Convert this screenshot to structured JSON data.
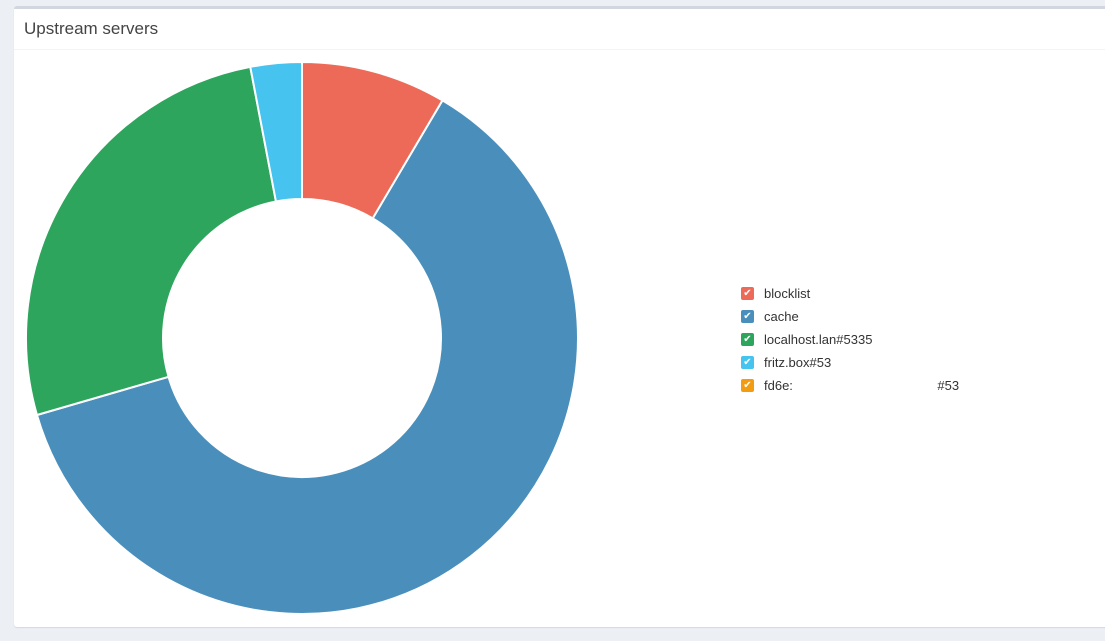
{
  "panel": {
    "title": "Upstream servers"
  },
  "chart_data": {
    "type": "pie",
    "donut": true,
    "categories": [
      "blocklist",
      "cache",
      "localhost.lan#5335",
      "fritz.box#53",
      "fd6e:                                        #53"
    ],
    "values": [
      8.5,
      62.0,
      26.5,
      3.0,
      0
    ],
    "colors": [
      "#ee6a58",
      "#4a8fbb",
      "#2da55c",
      "#46c3ee",
      "#f39c12"
    ],
    "legend_position": "right"
  }
}
